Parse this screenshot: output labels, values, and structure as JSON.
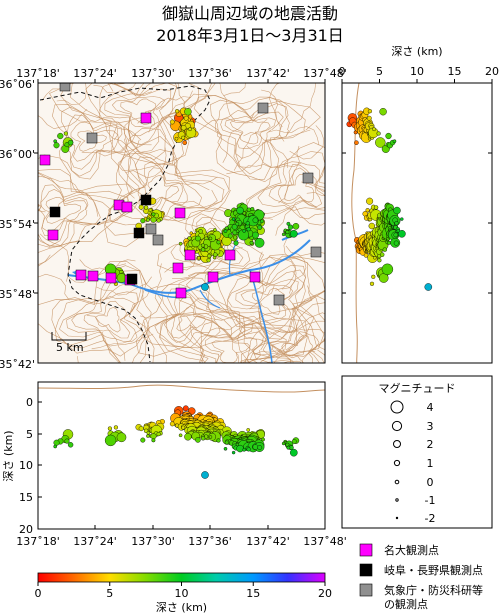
{
  "title": {
    "line1": "御嶽山周辺域の地震活動",
    "line2": "2018年3月1日〜3月31日"
  },
  "map": {
    "lon_ticks": [
      "137˚18'",
      "137˚24'",
      "137˚30'",
      "137˚36'",
      "137˚42'",
      "137˚48'"
    ],
    "lat_ticks": [
      "36˚06'",
      "36˚00'",
      "35˚54'",
      "35˚48'",
      "35˚42'"
    ],
    "scale_label": "5 km"
  },
  "right_panel": {
    "title": "深さ (km)",
    "ticks": [
      "0",
      "5",
      "10",
      "15",
      "20"
    ]
  },
  "bottom_panel": {
    "ylabel": "深さ (km)",
    "yticks": [
      "0",
      "5",
      "10",
      "15",
      "20"
    ],
    "xticks": [
      "137˚18'",
      "137˚24'",
      "137˚30'",
      "137˚36'",
      "137˚42'",
      "137˚48'"
    ]
  },
  "magnitude_legend": {
    "title": "マグニチュード",
    "items": [
      "4",
      "3",
      "2",
      "1",
      "0",
      "-1",
      "-2"
    ]
  },
  "station_legend": {
    "nagoya": "名大観測点",
    "gifu_nagano": "岐阜・長野県観測点",
    "jma_nied_1": "気象庁・防災科研等",
    "jma_nied_2": "の観測点"
  },
  "colorbar": {
    "ticks": [
      "0",
      "5",
      "10",
      "15",
      "20"
    ],
    "label": "深さ (km)"
  },
  "colors": {
    "nagoya_station": "#ff00ff",
    "gifu_station": "#000000",
    "jma_station": "#909090",
    "topo": "#c49060",
    "river": "#3b8fe8"
  }
}
